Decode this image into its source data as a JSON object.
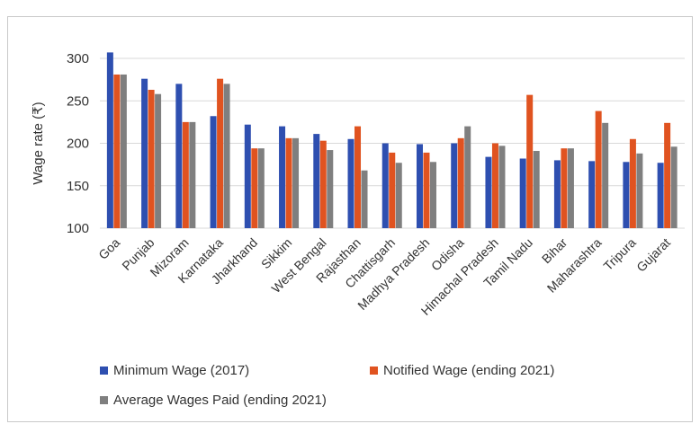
{
  "chart_data": {
    "type": "bar",
    "title": "",
    "xlabel": "",
    "ylabel": "Wage rate (₹)",
    "ylim": [
      100,
      300
    ],
    "yticks": [
      100,
      150,
      200,
      250,
      300
    ],
    "grid": true,
    "legend_position": "bottom",
    "categories": [
      "Goa",
      "Punjab",
      "Mizoram",
      "Karnataka",
      "Jharkhand",
      "Sikkim",
      "West Bengal",
      "Rajasthan",
      "Chattisgarh",
      "Madhya Pradesh",
      "Odisha",
      "Himachal Pradesh",
      "Tamil Nadu",
      "Bihar",
      "Maharashtra",
      "Tripura",
      "Gujarat"
    ],
    "series": [
      {
        "name": "Minimum Wage (2017)",
        "color": "#2e4fb0",
        "values": [
          307,
          276,
          270,
          232,
          222,
          220,
          211,
          205,
          200,
          199,
          200,
          184,
          182,
          180,
          179,
          178,
          177
        ]
      },
      {
        "name": "Notified Wage (ending 2021)",
        "color": "#e05320",
        "values": [
          281,
          263,
          225,
          276,
          194,
          206,
          203,
          220,
          189,
          189,
          206,
          200,
          257,
          194,
          238,
          205,
          224
        ]
      },
      {
        "name": "Average Wages Paid (ending 2021)",
        "color": "#7f7f7f",
        "values": [
          281,
          258,
          225,
          270,
          194,
          206,
          192,
          168,
          177,
          178,
          220,
          197,
          191,
          194,
          224,
          188,
          196
        ]
      }
    ]
  }
}
